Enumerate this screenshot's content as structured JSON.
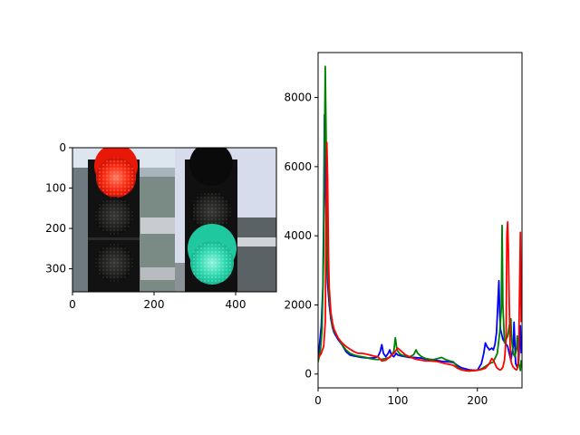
{
  "chart_data": [
    {
      "type": "image",
      "title": "",
      "xlabel": "",
      "ylabel": "",
      "xlim": [
        0,
        500
      ],
      "ylim": [
        357,
        0
      ],
      "xticks": [
        0,
        200,
        400
      ],
      "yticks": [
        0,
        100,
        200,
        300
      ],
      "image_content": {
        "left_panel_color": "red",
        "right_panel_color": "green"
      }
    },
    {
      "type": "line",
      "title": "",
      "xlabel": "",
      "ylabel": "",
      "xlim": [
        0,
        256
      ],
      "ylim": [
        -400,
        9300
      ],
      "xticks": [
        0,
        100,
        200
      ],
      "yticks": [
        0,
        2000,
        4000,
        6000,
        8000
      ],
      "grid": false,
      "series": [
        {
          "color": "#0000ff",
          "points": [
            [
              0,
              400
            ],
            [
              2,
              900
            ],
            [
              4,
              1400
            ],
            [
              6,
              2500
            ],
            [
              7,
              4500
            ],
            [
              8,
              7500
            ],
            [
              9,
              6000
            ],
            [
              10,
              4500
            ],
            [
              11,
              3200
            ],
            [
              12,
              2600
            ],
            [
              14,
              2000
            ],
            [
              16,
              1600
            ],
            [
              18,
              1350
            ],
            [
              20,
              1200
            ],
            [
              25,
              1000
            ],
            [
              30,
              850
            ],
            [
              35,
              650
            ],
            [
              40,
              550
            ],
            [
              45,
              520
            ],
            [
              50,
              500
            ],
            [
              55,
              480
            ],
            [
              60,
              470
            ],
            [
              65,
              460
            ],
            [
              70,
              470
            ],
            [
              75,
              500
            ],
            [
              78,
              650
            ],
            [
              80,
              850
            ],
            [
              82,
              600
            ],
            [
              85,
              500
            ],
            [
              88,
              600
            ],
            [
              90,
              700
            ],
            [
              92,
              550
            ],
            [
              95,
              500
            ],
            [
              98,
              600
            ],
            [
              100,
              550
            ],
            [
              105,
              520
            ],
            [
              110,
              500
            ],
            [
              115,
              480
            ],
            [
              120,
              480
            ],
            [
              125,
              470
            ],
            [
              130,
              460
            ],
            [
              135,
              430
            ],
            [
              140,
              420
            ],
            [
              145,
              400
            ],
            [
              150,
              390
            ],
            [
              155,
              370
            ],
            [
              160,
              360
            ],
            [
              165,
              350
            ],
            [
              170,
              330
            ],
            [
              175,
              250
            ],
            [
              180,
              180
            ],
            [
              185,
              150
            ],
            [
              190,
              120
            ],
            [
              195,
              110
            ],
            [
              200,
              110
            ],
            [
              205,
              300
            ],
            [
              208,
              600
            ],
            [
              210,
              900
            ],
            [
              212,
              800
            ],
            [
              215,
              700
            ],
            [
              218,
              750
            ],
            [
              220,
              700
            ],
            [
              222,
              850
            ],
            [
              224,
              1200
            ],
            [
              226,
              2200
            ],
            [
              227,
              2700
            ],
            [
              228,
              1800
            ],
            [
              229,
              1300
            ],
            [
              230,
              1200
            ],
            [
              232,
              1000
            ],
            [
              235,
              900
            ],
            [
              238,
              800
            ],
            [
              240,
              600
            ],
            [
              242,
              400
            ],
            [
              245,
              800
            ],
            [
              246,
              1500
            ],
            [
              247,
              900
            ],
            [
              248,
              300
            ],
            [
              250,
              200
            ],
            [
              252,
              400
            ],
            [
              253,
              1000
            ],
            [
              254,
              1400
            ],
            [
              255,
              600
            ]
          ]
        },
        {
          "color": "#008000",
          "points": [
            [
              0,
              350
            ],
            [
              3,
              700
            ],
            [
              5,
              1300
            ],
            [
              7,
              3500
            ],
            [
              8,
              6500
            ],
            [
              9,
              8900
            ],
            [
              10,
              7000
            ],
            [
              11,
              5000
            ],
            [
              12,
              3000
            ],
            [
              14,
              2200
            ],
            [
              16,
              1700
            ],
            [
              18,
              1400
            ],
            [
              20,
              1250
            ],
            [
              25,
              1050
            ],
            [
              30,
              850
            ],
            [
              35,
              700
            ],
            [
              40,
              600
            ],
            [
              45,
              550
            ],
            [
              50,
              520
            ],
            [
              55,
              500
            ],
            [
              60,
              480
            ],
            [
              65,
              450
            ],
            [
              70,
              430
            ],
            [
              75,
              420
            ],
            [
              80,
              430
            ],
            [
              85,
              450
            ],
            [
              90,
              480
            ],
            [
              95,
              650
            ],
            [
              97,
              1050
            ],
            [
              99,
              700
            ],
            [
              102,
              600
            ],
            [
              105,
              550
            ],
            [
              110,
              520
            ],
            [
              115,
              500
            ],
            [
              120,
              560
            ],
            [
              123,
              700
            ],
            [
              125,
              600
            ],
            [
              130,
              500
            ],
            [
              135,
              450
            ],
            [
              140,
              430
            ],
            [
              145,
              420
            ],
            [
              150,
              450
            ],
            [
              155,
              480
            ],
            [
              160,
              420
            ],
            [
              165,
              380
            ],
            [
              170,
              350
            ],
            [
              175,
              200
            ],
            [
              180,
              130
            ],
            [
              185,
              100
            ],
            [
              190,
              90
            ],
            [
              195,
              100
            ],
            [
              200,
              110
            ],
            [
              205,
              150
            ],
            [
              210,
              220
            ],
            [
              215,
              300
            ],
            [
              220,
              350
            ],
            [
              225,
              600
            ],
            [
              228,
              1200
            ],
            [
              230,
              1900
            ],
            [
              231,
              4300
            ],
            [
              232,
              2000
            ],
            [
              234,
              900
            ],
            [
              236,
              1000
            ],
            [
              238,
              1100
            ],
            [
              240,
              1400
            ],
            [
              242,
              1600
            ],
            [
              243,
              1000
            ],
            [
              245,
              600
            ],
            [
              247,
              500
            ],
            [
              249,
              700
            ],
            [
              250,
              1100
            ],
            [
              251,
              800
            ],
            [
              252,
              300
            ],
            [
              253,
              200
            ],
            [
              254,
              100
            ],
            [
              255,
              400
            ]
          ]
        },
        {
          "color": "#ff0000",
          "points": [
            [
              0,
              450
            ],
            [
              4,
              600
            ],
            [
              7,
              800
            ],
            [
              9,
              1500
            ],
            [
              10,
              4500
            ],
            [
              11,
              6700
            ],
            [
              12,
              5600
            ],
            [
              13,
              3500
            ],
            [
              14,
              2500
            ],
            [
              16,
              1800
            ],
            [
              18,
              1500
            ],
            [
              20,
              1300
            ],
            [
              25,
              1050
            ],
            [
              30,
              900
            ],
            [
              35,
              800
            ],
            [
              40,
              720
            ],
            [
              45,
              650
            ],
            [
              50,
              600
            ],
            [
              55,
              600
            ],
            [
              60,
              580
            ],
            [
              65,
              550
            ],
            [
              70,
              520
            ],
            [
              75,
              500
            ],
            [
              80,
              380
            ],
            [
              85,
              400
            ],
            [
              90,
              500
            ],
            [
              95,
              600
            ],
            [
              100,
              750
            ],
            [
              105,
              650
            ],
            [
              110,
              550
            ],
            [
              115,
              500
            ],
            [
              120,
              450
            ],
            [
              125,
              420
            ],
            [
              130,
              400
            ],
            [
              135,
              380
            ],
            [
              140,
              380
            ],
            [
              145,
              370
            ],
            [
              150,
              360
            ],
            [
              155,
              330
            ],
            [
              160,
              300
            ],
            [
              165,
              280
            ],
            [
              170,
              250
            ],
            [
              175,
              170
            ],
            [
              180,
              120
            ],
            [
              185,
              100
            ],
            [
              190,
              90
            ],
            [
              195,
              100
            ],
            [
              200,
              110
            ],
            [
              205,
              130
            ],
            [
              210,
              170
            ],
            [
              215,
              300
            ],
            [
              218,
              450
            ],
            [
              220,
              400
            ],
            [
              222,
              300
            ],
            [
              224,
              200
            ],
            [
              226,
              150
            ],
            [
              228,
              120
            ],
            [
              230,
              130
            ],
            [
              232,
              200
            ],
            [
              234,
              400
            ],
            [
              236,
              1000
            ],
            [
              237,
              4000
            ],
            [
              238,
              4400
            ],
            [
              239,
              3500
            ],
            [
              240,
              2000
            ],
            [
              241,
              900
            ],
            [
              242,
              400
            ],
            [
              243,
              300
            ],
            [
              245,
              200
            ],
            [
              247,
              150
            ],
            [
              249,
              120
            ],
            [
              250,
              150
            ],
            [
              251,
              300
            ],
            [
              252,
              1000
            ],
            [
              253,
              2500
            ],
            [
              254,
              4100
            ],
            [
              255,
              1500
            ]
          ]
        }
      ]
    }
  ]
}
